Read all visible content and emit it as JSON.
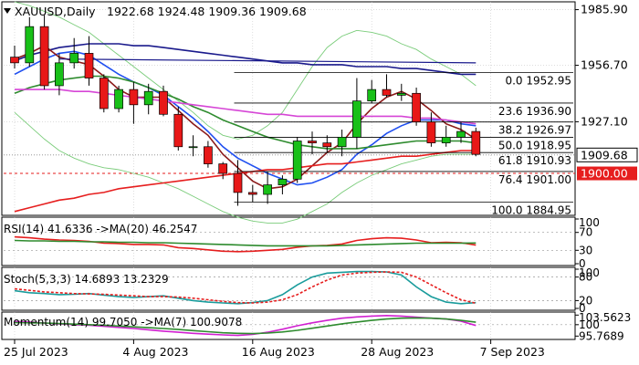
{
  "colors": {
    "up_candle": "#18c018",
    "down_candle": "#e81818",
    "ma_navy": "#1a1a8c",
    "ma_blue": "#1f4ff0",
    "ma_dark_red": "#8b1a1a",
    "ma_green": "#2e8b2e",
    "ma_magenta": "#d646d6",
    "ma_red_long": "#e61e1e",
    "bollinger": "#7acc7a",
    "fib_line": "#000000",
    "rsi_line": "#e61e1e",
    "rsi_ma": "#2e8b2e",
    "stoch_k": "#1a9c9c",
    "stoch_d": "#e61e1e",
    "momentum": "#d020d0",
    "momentum_ma": "#2e8b2e",
    "grid": "#c8c8c8",
    "current_price_box": "#ffffff",
    "level_1900_box": "#e61e1e"
  },
  "chart_data": [
    {
      "type": "candlestick",
      "panel": "price",
      "title": "XAUUSD,Daily",
      "ohlc_header": "1922.68 1924.48 1909.36 1909.68",
      "yticks": [
        "1985.90",
        "1956.70",
        "1927.10"
      ],
      "yrange": [
        1878,
        1990
      ],
      "xlabels": [
        "25 Jul 2023",
        "4 Aug 2023",
        "16 Aug 2023",
        "28 Aug 2023",
        "7 Sep 2023"
      ],
      "xlabel_index": [
        0,
        8,
        16,
        24,
        32
      ],
      "candles": [
        {
          "o": 1961,
          "h": 1967,
          "l": 1955,
          "c": 1958
        },
        {
          "o": 1958,
          "h": 1982,
          "l": 1956,
          "c": 1977
        },
        {
          "o": 1977,
          "h": 1983,
          "l": 1944,
          "c": 1946
        },
        {
          "o": 1946,
          "h": 1963,
          "l": 1941,
          "c": 1958
        },
        {
          "o": 1958,
          "h": 1971,
          "l": 1955,
          "c": 1963
        },
        {
          "o": 1963,
          "h": 1972,
          "l": 1946,
          "c": 1950
        },
        {
          "o": 1950,
          "h": 1952,
          "l": 1932,
          "c": 1934
        },
        {
          "o": 1934,
          "h": 1946,
          "l": 1932,
          "c": 1944
        },
        {
          "o": 1944,
          "h": 1948,
          "l": 1926,
          "c": 1936
        },
        {
          "o": 1936,
          "h": 1947,
          "l": 1931,
          "c": 1943
        },
        {
          "o": 1943,
          "h": 1946,
          "l": 1930,
          "c": 1931
        },
        {
          "o": 1931,
          "h": 1935,
          "l": 1912,
          "c": 1914
        },
        {
          "o": 1914,
          "h": 1920,
          "l": 1909,
          "c": 1914
        },
        {
          "o": 1914,
          "h": 1917,
          "l": 1903,
          "c": 1905
        },
        {
          "o": 1905,
          "h": 1906,
          "l": 1897,
          "c": 1900
        },
        {
          "o": 1900,
          "h": 1907,
          "l": 1883,
          "c": 1890
        },
        {
          "o": 1890,
          "h": 1894,
          "l": 1885,
          "c": 1889
        },
        {
          "o": 1889,
          "h": 1901,
          "l": 1884,
          "c": 1894
        },
        {
          "o": 1894,
          "h": 1899,
          "l": 1889,
          "c": 1897
        },
        {
          "o": 1897,
          "h": 1919,
          "l": 1895,
          "c": 1917
        },
        {
          "o": 1917,
          "h": 1922,
          "l": 1910,
          "c": 1916
        },
        {
          "o": 1916,
          "h": 1920,
          "l": 1911,
          "c": 1914
        },
        {
          "o": 1914,
          "h": 1923,
          "l": 1909,
          "c": 1919
        },
        {
          "o": 1919,
          "h": 1950,
          "l": 1913,
          "c": 1938
        },
        {
          "o": 1938,
          "h": 1949,
          "l": 1937,
          "c": 1944
        },
        {
          "o": 1944,
          "h": 1952,
          "l": 1940,
          "c": 1941
        },
        {
          "o": 1941,
          "h": 1947,
          "l": 1938,
          "c": 1942
        },
        {
          "o": 1942,
          "h": 1945,
          "l": 1925,
          "c": 1927
        },
        {
          "o": 1927,
          "h": 1932,
          "l": 1914,
          "c": 1916
        },
        {
          "o": 1916,
          "h": 1925,
          "l": 1914,
          "c": 1919
        },
        {
          "o": 1919,
          "h": 1927,
          "l": 1916,
          "c": 1922
        },
        {
          "o": 1922,
          "h": 1924,
          "l": 1909,
          "c": 1910
        }
      ],
      "series": [
        {
          "color_key": "ma_navy",
          "values": [
            1959,
            1962,
            1964,
            1966,
            1967,
            1968,
            1968,
            1968,
            1967,
            1967,
            1966,
            1965,
            1964,
            1963,
            1962,
            1961,
            1960,
            1959,
            1958,
            1958,
            1957,
            1957,
            1957,
            1956,
            1956,
            1956,
            1955,
            1955,
            1954,
            1953,
            1952,
            1952
          ]
        },
        {
          "color_key": "ma_blue",
          "values": [
            1952,
            1956,
            1960,
            1963,
            1964,
            1962,
            1957,
            1952,
            1948,
            1945,
            1941,
            1935,
            1929,
            1922,
            1914,
            1908,
            1904,
            1900,
            1897,
            1894,
            1895,
            1898,
            1902,
            1910,
            1915,
            1921,
            1925,
            1928,
            1928,
            1928,
            1926,
            1925
          ]
        },
        {
          "color_key": "ma_dark_red",
          "values": [
            1960,
            1963,
            1967,
            1961,
            1959,
            1957,
            1951,
            1944,
            1940,
            1940,
            1940,
            1933,
            1926,
            1920,
            1910,
            1903,
            1896,
            1892,
            1893,
            1897,
            1904,
            1911,
            1916,
            1926,
            1934,
            1940,
            1943,
            1939,
            1933,
            1926,
            1923,
            1918
          ]
        },
        {
          "color_key": "ma_green",
          "values": [
            1942,
            1945,
            1947,
            1949,
            1950,
            1951,
            1951,
            1950,
            1948,
            1945,
            1942,
            1939,
            1935,
            1932,
            1928,
            1925,
            1922,
            1919,
            1917,
            1915,
            1914,
            1913,
            1913,
            1913,
            1914,
            1915,
            1916,
            1917,
            1917,
            1917,
            1917,
            1916
          ]
        },
        {
          "color_key": "ma_magenta",
          "values": [
            1944,
            1944,
            1944,
            1944,
            1943,
            1943,
            1942,
            1941,
            1940,
            1939,
            1938,
            1937,
            1936,
            1935,
            1934,
            1933,
            1932,
            1931,
            1931,
            1930,
            1930,
            1930,
            1930,
            1930,
            1930,
            1930,
            1930,
            1929,
            1929,
            1928,
            1927,
            1926
          ]
        },
        {
          "color_key": "ma_red_long",
          "values": [
            1880,
            1882,
            1884,
            1886,
            1887,
            1889,
            1890,
            1892,
            1893,
            1894,
            1895,
            1896,
            1897,
            1898,
            1899,
            1900,
            1901,
            1902,
            1902,
            1903,
            1904,
            1905,
            1905,
            1906,
            1907,
            1908,
            1909,
            1909,
            1910,
            1911,
            1912,
            1912
          ]
        },
        {
          "color_key": "bollinger",
          "values": [
            1990,
            1988,
            1985,
            1982,
            1978,
            1974,
            1968,
            1962,
            1956,
            1950,
            1944,
            1938,
            1932,
            1925,
            1920,
            1918,
            1920,
            1925,
            1932,
            1944,
            1956,
            1966,
            1972,
            1975,
            1974,
            1972,
            1968,
            1965,
            1960,
            1956,
            1952,
            1946
          ]
        },
        {
          "color_key": "bollinger",
          "values": [
            1932,
            1925,
            1918,
            1912,
            1908,
            1905,
            1903,
            1902,
            1900,
            1898,
            1895,
            1892,
            1888,
            1884,
            1880,
            1877,
            1875,
            1874,
            1874,
            1876,
            1880,
            1884,
            1890,
            1895,
            1899,
            1902,
            1905,
            1907,
            1909,
            1910,
            1910,
            1910
          ]
        }
      ],
      "fib_levels": [
        {
          "pct": "0.0",
          "value": 1952.95,
          "label": "0.0 1952.95"
        },
        {
          "pct": "23.6",
          "value": 1936.9,
          "label": "23.6 1936.90"
        },
        {
          "pct": "38.2",
          "value": 1926.97,
          "label": "38.2 1926.97"
        },
        {
          "pct": "50.0",
          "value": 1918.95,
          "label": "50.0 1918.95"
        },
        {
          "pct": "61.8",
          "value": 1910.93,
          "label": "61.8 1910.93"
        },
        {
          "pct": "76.4",
          "value": 1901.0,
          "label": "76.4 1901.00"
        },
        {
          "pct": "100.0",
          "value": 1884.95,
          "label": "100.0 1884.95"
        }
      ],
      "fib_start_index": 15,
      "trendline": {
        "from_index": 3,
        "from_value": 1960,
        "to_index": 31,
        "to_value": 1958
      },
      "current_price": {
        "value": 1909.68,
        "label": "1909.68"
      },
      "hline": {
        "value": 1900,
        "label": "1900.00"
      }
    },
    {
      "type": "line",
      "panel": "rsi",
      "title": "RSI(14) 41.6336 ->MA(20) 46.2547",
      "yticks": [
        "100",
        "70",
        "30",
        "0"
      ],
      "yrange": [
        0,
        100
      ],
      "series": [
        {
          "color_key": "rsi_line",
          "values": [
            60,
            58,
            55,
            53,
            52,
            50,
            46,
            45,
            43,
            43,
            42,
            36,
            34,
            31,
            28,
            27,
            28,
            30,
            32,
            37,
            40,
            41,
            44,
            52,
            56,
            58,
            57,
            53,
            47,
            48,
            47,
            41.6336
          ]
        },
        {
          "color_key": "rsi_ma",
          "values": [
            52,
            51,
            51,
            50,
            50,
            49,
            49,
            48,
            48,
            47,
            47,
            46,
            45,
            44,
            43,
            42,
            41,
            40,
            40,
            40,
            40,
            40,
            41,
            42,
            43,
            44,
            45,
            46,
            46,
            46,
            46,
            46.2547
          ]
        }
      ]
    },
    {
      "type": "line",
      "panel": "stoch",
      "title": "Stoch(5,3,3) 14.6893 13.2329",
      "yticks": [
        "100",
        "80",
        "20",
        "0"
      ],
      "yrange": [
        0,
        100
      ],
      "series": [
        {
          "color_key": "stoch_k",
          "values": [
            45,
            40,
            38,
            35,
            36,
            38,
            34,
            30,
            28,
            30,
            32,
            26,
            20,
            16,
            14,
            12,
            15,
            20,
            35,
            60,
            80,
            90,
            92,
            94,
            94,
            93,
            85,
            55,
            30,
            16,
            12,
            14.6893
          ]
        },
        {
          "color_key": "stoch_d",
          "values": [
            50,
            46,
            42,
            40,
            38,
            37,
            36,
            34,
            32,
            30,
            30,
            29,
            26,
            22,
            18,
            15,
            14,
            16,
            22,
            35,
            55,
            72,
            85,
            90,
            92,
            93,
            92,
            80,
            60,
            40,
            22,
            13.2329
          ]
        }
      ]
    },
    {
      "type": "line",
      "panel": "momentum",
      "title": "Momentum(14) 99.7050 ->MA(7) 100.9078",
      "yticks": [
        "103.5623",
        "100",
        "95.7689"
      ],
      "yrange": [
        95.2,
        104.0
      ],
      "series": [
        {
          "color_key": "momentum",
          "values": [
            101.2,
            101.0,
            100.6,
            100.3,
            100.0,
            99.8,
            99.4,
            99.0,
            98.6,
            98.1,
            97.6,
            97.2,
            96.8,
            96.5,
            96.2,
            96.0,
            96.4,
            97.2,
            98.3,
            99.6,
            100.7,
            101.6,
            102.4,
            102.9,
            103.2,
            103.4,
            103.2,
            102.8,
            102.4,
            102.1,
            101.3,
            99.705
          ]
        },
        {
          "color_key": "momentum_ma",
          "values": [
            100.8,
            100.7,
            100.6,
            100.4,
            100.2,
            100.0,
            99.8,
            99.5,
            99.2,
            98.9,
            98.6,
            98.2,
            97.8,
            97.4,
            97.0,
            96.8,
            96.7,
            96.9,
            97.3,
            97.9,
            98.7,
            99.5,
            100.3,
            101.0,
            101.6,
            102.1,
            102.4,
            102.5,
            102.4,
            102.1,
            101.6,
            100.9078
          ]
        }
      ]
    }
  ]
}
